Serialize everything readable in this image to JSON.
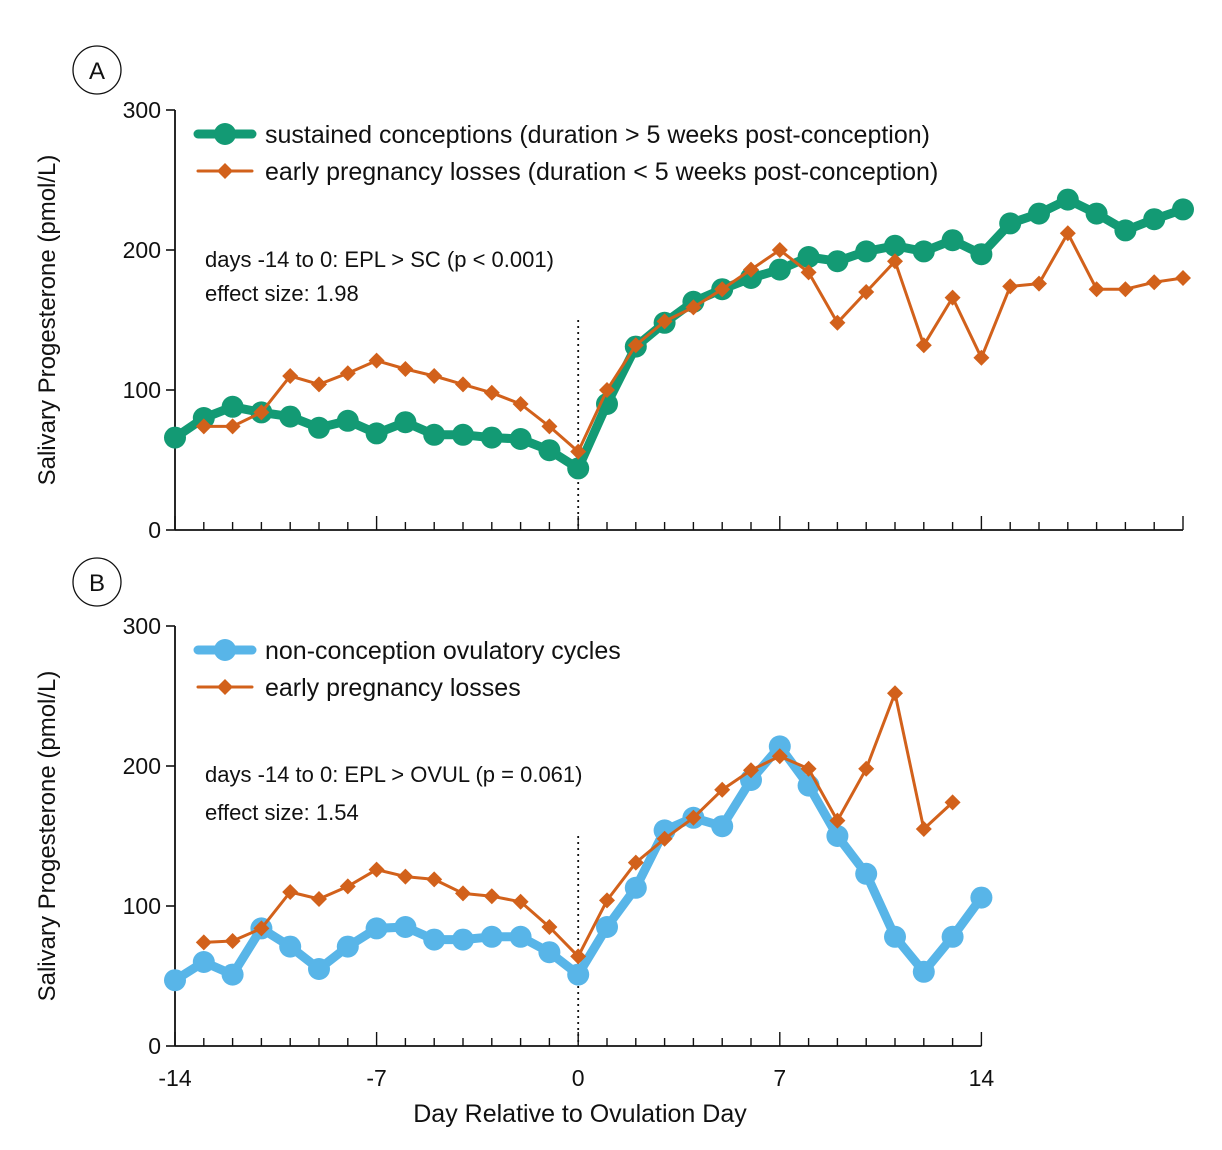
{
  "figure": {
    "xlabel": "Day Relative to Ovulation Day",
    "vline_x": 0
  },
  "colors": {
    "sc": "#139a74",
    "epl": "#d2611b",
    "ovul": "#58b5e8",
    "axis": "#111111"
  },
  "chart_data": [
    {
      "type": "line",
      "panel_letter": "A",
      "ylabel": "Salivary Progesterone (pmol/L)",
      "xlim": [
        -14,
        21
      ],
      "ylim": [
        0,
        300
      ],
      "yticks": [
        0,
        100,
        200,
        300
      ],
      "xticks_labeled": [],
      "annotation_lines": [
        "days -14 to 0: EPL > SC (p < 0.001)",
        "effect size: 1.98"
      ],
      "series": [
        {
          "name": "sustained conceptions (duration > 5 weeks post-conception)",
          "color_key": "sc",
          "marker": "circle",
          "x": [
            -14,
            -13,
            -12,
            -11,
            -10,
            -9,
            -8,
            -7,
            -6,
            -5,
            -4,
            -3,
            -2,
            -1,
            0,
            1,
            2,
            3,
            4,
            5,
            6,
            7,
            8,
            9,
            10,
            11,
            12,
            13,
            14,
            15,
            16,
            17,
            18,
            19,
            20,
            21
          ],
          "values": [
            66,
            80,
            88,
            84,
            81,
            73,
            78,
            69,
            77,
            68,
            68,
            66,
            65,
            57,
            44,
            90,
            131,
            148,
            163,
            172,
            180,
            186,
            195,
            192,
            199,
            203,
            199,
            207,
            197,
            219,
            226,
            236,
            226,
            214,
            222,
            229
          ]
        },
        {
          "name": "early pregnancy losses (duration < 5 weeks post-conception)",
          "color_key": "epl",
          "marker": "diamond",
          "x": [
            -13,
            -12,
            -11,
            -10,
            -9,
            -8,
            -7,
            -6,
            -5,
            -4,
            -3,
            -2,
            -1,
            0,
            1,
            2,
            3,
            4,
            5,
            6,
            7,
            8,
            9,
            10,
            11,
            12,
            13,
            14,
            15,
            16,
            17,
            18,
            19,
            20,
            21
          ],
          "values": [
            74,
            74,
            84,
            110,
            104,
            112,
            121,
            115,
            110,
            104,
            98,
            90,
            74,
            56,
            100,
            132,
            149,
            159,
            172,
            186,
            200,
            184,
            148,
            170,
            192,
            132,
            166,
            123,
            174,
            176,
            212,
            172,
            172,
            177,
            180
          ]
        }
      ]
    },
    {
      "type": "line",
      "panel_letter": "B",
      "ylabel": "Salivary Progesterone (pmol/L)",
      "xlim": [
        -14,
        14
      ],
      "ylim": [
        0,
        300
      ],
      "yticks": [
        0,
        100,
        200,
        300
      ],
      "xticks_labeled": [
        -14,
        -7,
        0,
        7,
        14
      ],
      "annotation_lines": [
        "days -14 to 0: EPL > OVUL (p = 0.061)",
        "effect size: 1.54"
      ],
      "series": [
        {
          "name": "non-conception ovulatory cycles",
          "color_key": "ovul",
          "marker": "circle",
          "x": [
            -14,
            -13,
            -12,
            -11,
            -10,
            -9,
            -8,
            -7,
            -6,
            -5,
            -4,
            -3,
            -2,
            -1,
            0,
            1,
            2,
            3,
            4,
            5,
            6,
            7,
            8,
            9,
            10,
            11,
            12,
            13,
            14
          ],
          "values": [
            47,
            60,
            51,
            84,
            71,
            55,
            71,
            84,
            85,
            76,
            76,
            78,
            78,
            67,
            51,
            85,
            113,
            154,
            163,
            157,
            190,
            214,
            186,
            150,
            123,
            78,
            53,
            78,
            106
          ]
        },
        {
          "name": "early pregnancy losses",
          "color_key": "epl",
          "marker": "diamond",
          "x": [
            -13,
            -12,
            -11,
            -10,
            -9,
            -8,
            -7,
            -6,
            -5,
            -4,
            -3,
            -2,
            -1,
            0,
            1,
            2,
            3,
            4,
            5,
            6,
            7,
            8,
            9,
            10,
            11,
            12,
            13
          ],
          "values": [
            74,
            75,
            84,
            110,
            105,
            114,
            126,
            121,
            119,
            109,
            107,
            103,
            85,
            64,
            104,
            131,
            148,
            163,
            183,
            197,
            207,
            198,
            161,
            198,
            252,
            155,
            174
          ]
        }
      ]
    }
  ]
}
